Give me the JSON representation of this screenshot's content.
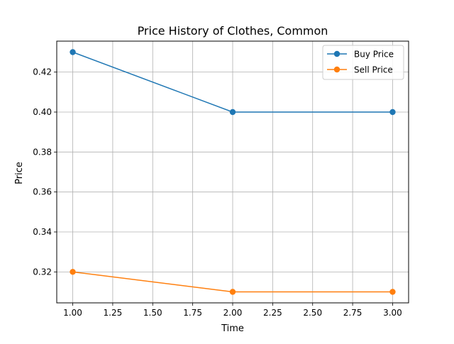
{
  "chart_data": {
    "type": "line",
    "title": "Price History of Clothes, Common",
    "xlabel": "Time",
    "ylabel": "Price",
    "xlim": [
      0.9,
      3.1
    ],
    "ylim": [
      0.3045,
      0.4355
    ],
    "x_ticks": [
      1.0,
      1.25,
      1.5,
      1.75,
      2.0,
      2.25,
      2.5,
      2.75,
      3.0
    ],
    "x_tick_labels": [
      "1.00",
      "1.25",
      "1.50",
      "1.75",
      "2.00",
      "2.25",
      "2.50",
      "2.75",
      "3.00"
    ],
    "y_ticks": [
      0.32,
      0.34,
      0.36,
      0.38,
      0.4,
      0.42
    ],
    "y_tick_labels": [
      "0.32",
      "0.34",
      "0.36",
      "0.38",
      "0.40",
      "0.42"
    ],
    "grid": true,
    "legend_position": "top-right",
    "x": [
      1,
      2,
      3
    ],
    "series": [
      {
        "name": "Buy Price",
        "values": [
          0.43,
          0.4,
          0.4
        ],
        "color": "#1f77b4"
      },
      {
        "name": "Sell Price",
        "values": [
          0.32,
          0.31,
          0.31
        ],
        "color": "#ff7f0e"
      }
    ]
  }
}
